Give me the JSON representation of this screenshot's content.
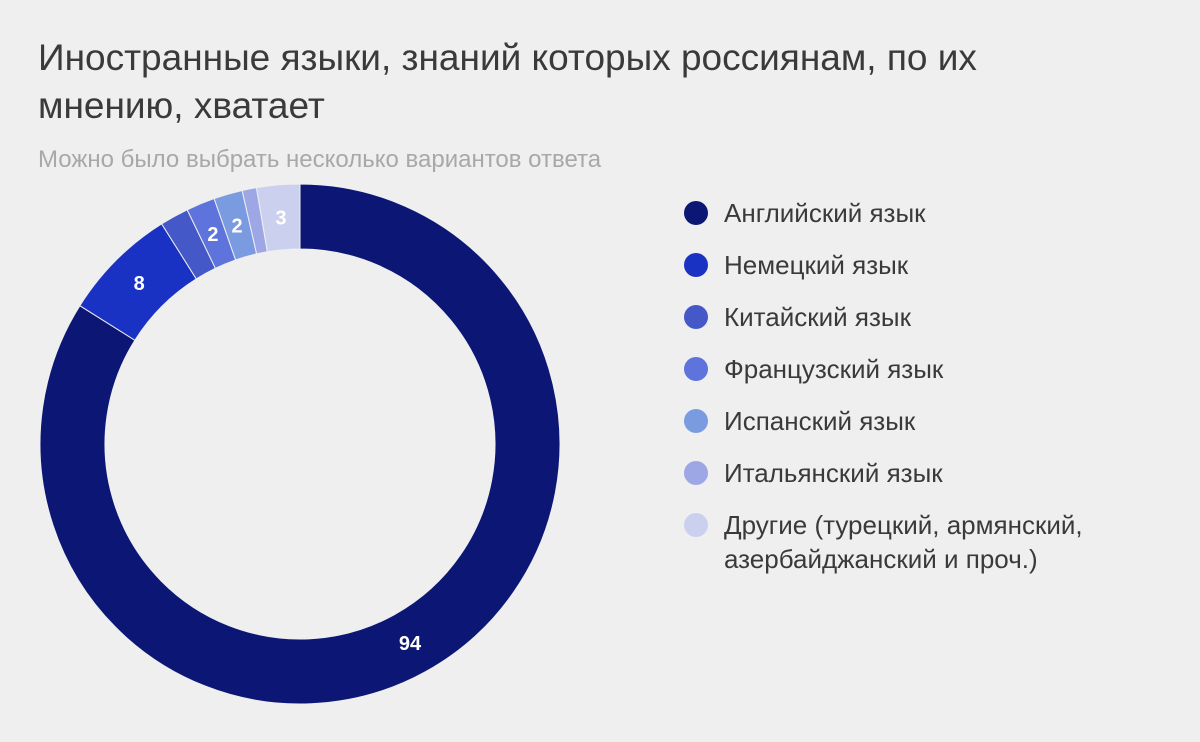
{
  "chart_data": {
    "type": "pie",
    "title": "Иностранные языки, знаний которых россиянам, по их мнению, хватает",
    "subtitle": "Можно было выбрать несколько вариантов ответа",
    "legend_position": "right",
    "slices": [
      {
        "label": "Английский язык",
        "value": 94,
        "color": "#0c1775",
        "data_label": "94"
      },
      {
        "label": "Немецкий язык",
        "value": 8,
        "color": "#1932c4",
        "data_label": "8"
      },
      {
        "label": "Китайский язык",
        "value": 2,
        "color": "#4458c8",
        "data_label": ""
      },
      {
        "label": "Французский язык",
        "value": 2,
        "color": "#5e74dc",
        "data_label": "2"
      },
      {
        "label": "Испанский язык",
        "value": 2,
        "color": "#7b9be0",
        "data_label": "2"
      },
      {
        "label": "Итальянский язык",
        "value": 1,
        "color": "#9ea7e6",
        "data_label": ""
      },
      {
        "label": "Другие (турецкий, армянский, азербайджанский и проч.)",
        "value": 3,
        "color": "#ccd0ef",
        "data_label": "3"
      }
    ]
  }
}
